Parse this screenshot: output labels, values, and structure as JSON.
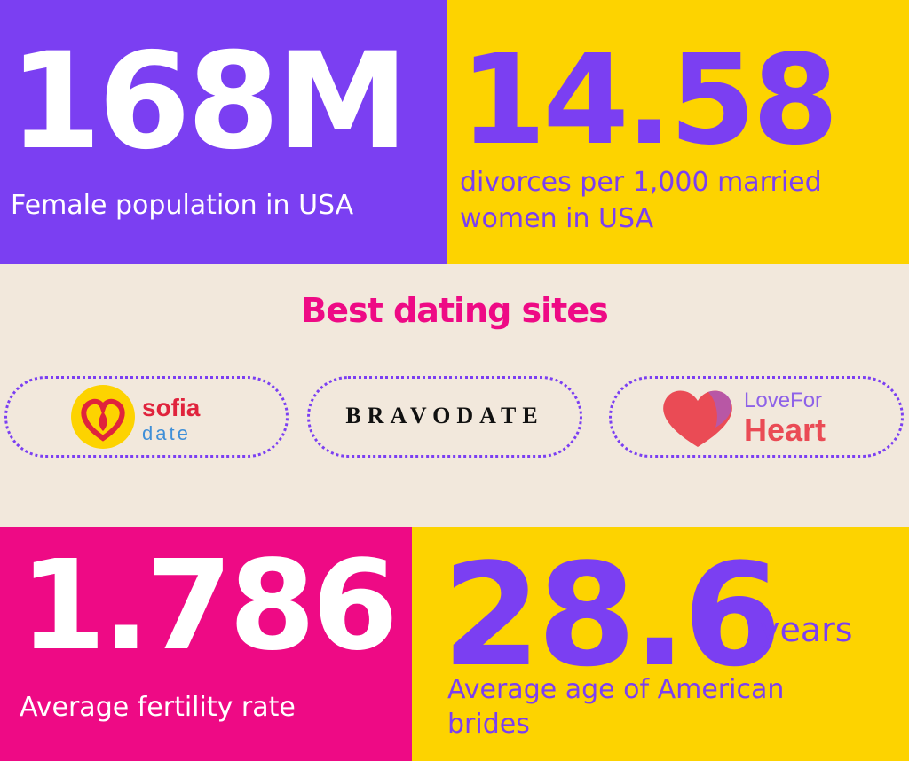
{
  "colors": {
    "purple": "#7b3ff2",
    "yellow": "#fdd300",
    "beige": "#f2e8dc",
    "pink": "#ee0a85",
    "white": "#ffffff",
    "sofia_red": "#e0233c",
    "sofia_blue": "#3f8fd8",
    "love_red": "#ea4b55",
    "love_purple": "#8e62e8",
    "dotted_border": "#7b3ff2"
  },
  "stats": {
    "female_population": {
      "value": "168M",
      "caption": "Female population in USA"
    },
    "divorce_rate": {
      "value": "14.58",
      "caption": "divorces per 1,000 married women in USA"
    },
    "fertility_rate": {
      "value": "1.786",
      "caption": "Average fertility rate"
    },
    "bride_age": {
      "value": "28.6",
      "unit": "years",
      "caption": "Average age of American brides"
    }
  },
  "dating": {
    "title": "Best dating sites",
    "sites": [
      {
        "name_main": "sofia",
        "name_sub": "date",
        "icon": "heart-circle-icon"
      },
      {
        "name_main": "BRAVODATE"
      },
      {
        "name_main": "LoveFor",
        "name_sub": "Heart",
        "icon": "heart-icon"
      }
    ]
  }
}
